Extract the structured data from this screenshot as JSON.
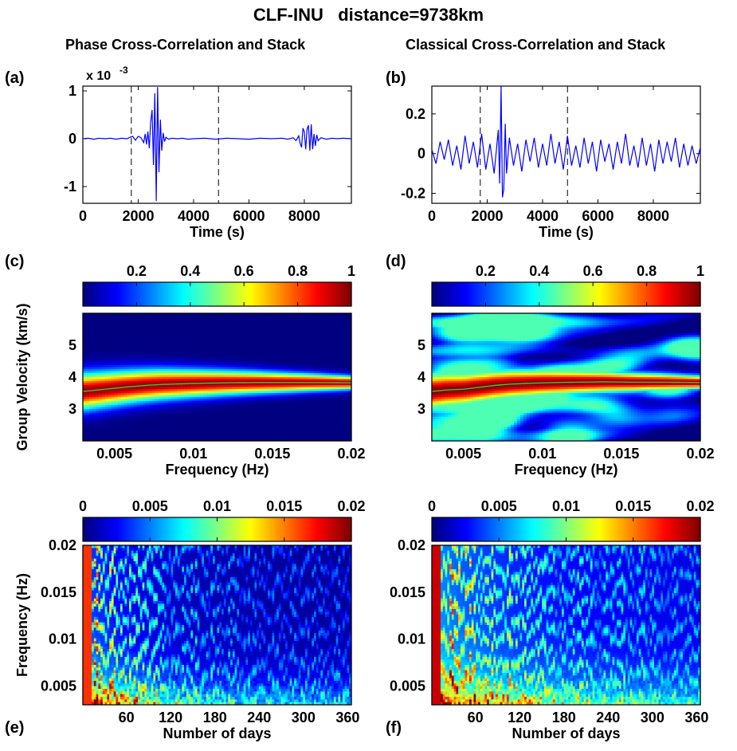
{
  "figure": {
    "title": "CLF-INU   distance=9738km",
    "left_column_title": "Phase Cross-Correlation and Stack",
    "right_column_title": "Classical Cross-Correlation and Stack",
    "panel_labels": [
      "(a)",
      "(b)",
      "(c)",
      "(d)",
      "(e)",
      "(f)"
    ]
  },
  "chart_data": [
    {
      "id": "a",
      "type": "line",
      "xlabel": "Time (s)",
      "ylabel": "",
      "scale_label": "x 10",
      "scale_exponent": "-3",
      "xlim": [
        0,
        9700
      ],
      "ylim": [
        -1.35,
        1.1
      ],
      "xticks": [
        0,
        2000,
        4000,
        6000,
        8000
      ],
      "yticks": [
        -1,
        0,
        1
      ],
      "vlines": [
        1750,
        4900
      ],
      "line_color": "#0000ff",
      "x": [
        0,
        200,
        400,
        600,
        800,
        1000,
        1200,
        1400,
        1600,
        1700,
        1800,
        1900,
        2000,
        2100,
        2200,
        2250,
        2300,
        2350,
        2400,
        2450,
        2500,
        2550,
        2600,
        2650,
        2700,
        2750,
        2800,
        2850,
        2900,
        2950,
        3000,
        3100,
        3200,
        3400,
        3600,
        3800,
        4000,
        4400,
        4800,
        5200,
        5600,
        6000,
        6400,
        6800,
        7200,
        7400,
        7600,
        7700,
        7800,
        7850,
        7900,
        7950,
        8000,
        8050,
        8100,
        8150,
        8200,
        8250,
        8300,
        8350,
        8400,
        8450,
        8500,
        8600,
        8800,
        9000,
        9200,
        9400,
        9700
      ],
      "y": [
        0,
        0.01,
        -0.01,
        0.01,
        0,
        0.01,
        -0.01,
        0.01,
        0,
        0.03,
        0.05,
        -0.03,
        0.05,
        0.02,
        -0.08,
        0.1,
        -0.12,
        0.15,
        -0.2,
        0.35,
        0.6,
        -0.55,
        0.95,
        -1.3,
        1.08,
        -0.7,
        0.4,
        -0.25,
        0.12,
        -0.06,
        0.03,
        -0.01,
        0.01,
        0,
        0.01,
        -0.01,
        0,
        0.01,
        -0.01,
        0.01,
        0,
        -0.01,
        0.01,
        0,
        0.01,
        -0.01,
        0.02,
        -0.04,
        0.06,
        -0.1,
        -0.18,
        0.22,
        0.15,
        -0.22,
        0.2,
        0.28,
        -0.25,
        0.3,
        -0.22,
        0.1,
        -0.15,
        0.08,
        -0.04,
        0.02,
        -0.01,
        0.01,
        0,
        0.01,
        0
      ]
    },
    {
      "id": "b",
      "type": "line",
      "xlabel": "Time (s)",
      "ylabel": "",
      "xlim": [
        0,
        9700
      ],
      "ylim": [
        -0.25,
        0.34
      ],
      "xticks": [
        0,
        2000,
        4000,
        6000,
        8000
      ],
      "yticks": [
        -0.2,
        0,
        0.2
      ],
      "vlines": [
        1750,
        4900
      ],
      "line_color": "#0000ff",
      "x": [
        0,
        150,
        300,
        450,
        600,
        750,
        900,
        1050,
        1200,
        1350,
        1500,
        1650,
        1800,
        1950,
        2100,
        2250,
        2400,
        2450,
        2500,
        2550,
        2600,
        2650,
        2700,
        2800,
        2950,
        3100,
        3250,
        3400,
        3550,
        3700,
        3850,
        4000,
        4150,
        4300,
        4450,
        4600,
        4750,
        4900,
        5050,
        5200,
        5350,
        5500,
        5650,
        5800,
        5950,
        6100,
        6250,
        6400,
        6550,
        6700,
        6850,
        7000,
        7150,
        7300,
        7450,
        7600,
        7750,
        7900,
        8050,
        8200,
        8350,
        8500,
        8650,
        8800,
        8950,
        9100,
        9250,
        9400,
        9550,
        9700
      ],
      "y": [
        0.02,
        -0.05,
        0.06,
        -0.03,
        0.07,
        -0.06,
        0.04,
        -0.08,
        0.09,
        -0.05,
        0.06,
        -0.07,
        0.1,
        -0.08,
        0.05,
        -0.1,
        0.12,
        -0.15,
        0.34,
        -0.22,
        -0.18,
        0.15,
        -0.1,
        0.08,
        -0.06,
        0.05,
        -0.09,
        0.07,
        -0.04,
        0.08,
        -0.07,
        0.05,
        -0.06,
        0.1,
        -0.05,
        0.06,
        -0.08,
        0.09,
        -0.06,
        0.04,
        -0.07,
        0.08,
        -0.05,
        0.06,
        -0.09,
        0.07,
        -0.04,
        0.05,
        -0.08,
        0.06,
        -0.05,
        0.1,
        -0.06,
        0.04,
        -0.07,
        0.08,
        -0.06,
        0.05,
        -0.09,
        0.07,
        -0.05,
        0.06,
        -0.04,
        0.08,
        -0.07,
        0.05,
        -0.06,
        0.04,
        -0.05,
        0.03
      ]
    },
    {
      "id": "c",
      "type": "heatmap",
      "xlabel": "Frequency (Hz)",
      "ylabel": "Group Velocity (km/s)",
      "xlim": [
        0.003,
        0.02
      ],
      "ylim": [
        2.0,
        6.0
      ],
      "xticks": [
        0.005,
        0.01,
        0.015,
        0.02
      ],
      "yticks": [
        3,
        4,
        5
      ],
      "colorbar": {
        "min": 0,
        "max": 1,
        "ticks": [
          0.2,
          0.4,
          0.6,
          0.8,
          1
        ]
      },
      "dispersion_curve": {
        "x": [
          0.003,
          0.004,
          0.005,
          0.006,
          0.007,
          0.008,
          0.01,
          0.012,
          0.014,
          0.016,
          0.018,
          0.02
        ],
        "y": [
          3.55,
          3.6,
          3.65,
          3.7,
          3.74,
          3.77,
          3.8,
          3.82,
          3.83,
          3.83,
          3.83,
          3.82
        ]
      }
    },
    {
      "id": "d",
      "type": "heatmap",
      "xlabel": "Frequency (Hz)",
      "ylabel": "",
      "xlim": [
        0.003,
        0.02
      ],
      "ylim": [
        2.0,
        6.0
      ],
      "xticks": [
        0.005,
        0.01,
        0.015,
        0.02
      ],
      "yticks": [
        3,
        4,
        5
      ],
      "colorbar": {
        "min": 0,
        "max": 1,
        "ticks": [
          0.2,
          0.4,
          0.6,
          0.8,
          1
        ]
      },
      "dispersion_curve": {
        "x": [
          0.003,
          0.004,
          0.005,
          0.006,
          0.007,
          0.008,
          0.01,
          0.012,
          0.014,
          0.016,
          0.018,
          0.02
        ],
        "y": [
          3.55,
          3.6,
          3.62,
          3.68,
          3.74,
          3.78,
          3.82,
          3.84,
          3.85,
          3.84,
          3.84,
          3.83
        ]
      }
    },
    {
      "id": "e",
      "type": "heatmap",
      "xlabel": "Number of days",
      "ylabel": "Frequency (Hz)",
      "xlim": [
        1,
        365
      ],
      "ylim": [
        0.003,
        0.02
      ],
      "xticks": [
        60,
        120,
        180,
        240,
        300,
        360
      ],
      "yticks": [
        0.005,
        0.01,
        0.015,
        0.02
      ],
      "colorbar": {
        "min": 0,
        "max": 0.02,
        "ticks": [
          0,
          0.005,
          0.01,
          0.015,
          0.02
        ]
      }
    },
    {
      "id": "f",
      "type": "heatmap",
      "xlabel": "Number of days",
      "ylabel": "",
      "xlim": [
        1,
        365
      ],
      "ylim": [
        0.003,
        0.02
      ],
      "xticks": [
        60,
        120,
        180,
        240,
        300,
        360
      ],
      "yticks": [
        0.005,
        0.01,
        0.015,
        0.02
      ],
      "colorbar": {
        "min": 0,
        "max": 0.02,
        "ticks": [
          0,
          0.005,
          0.01,
          0.015,
          0.02
        ]
      }
    }
  ]
}
